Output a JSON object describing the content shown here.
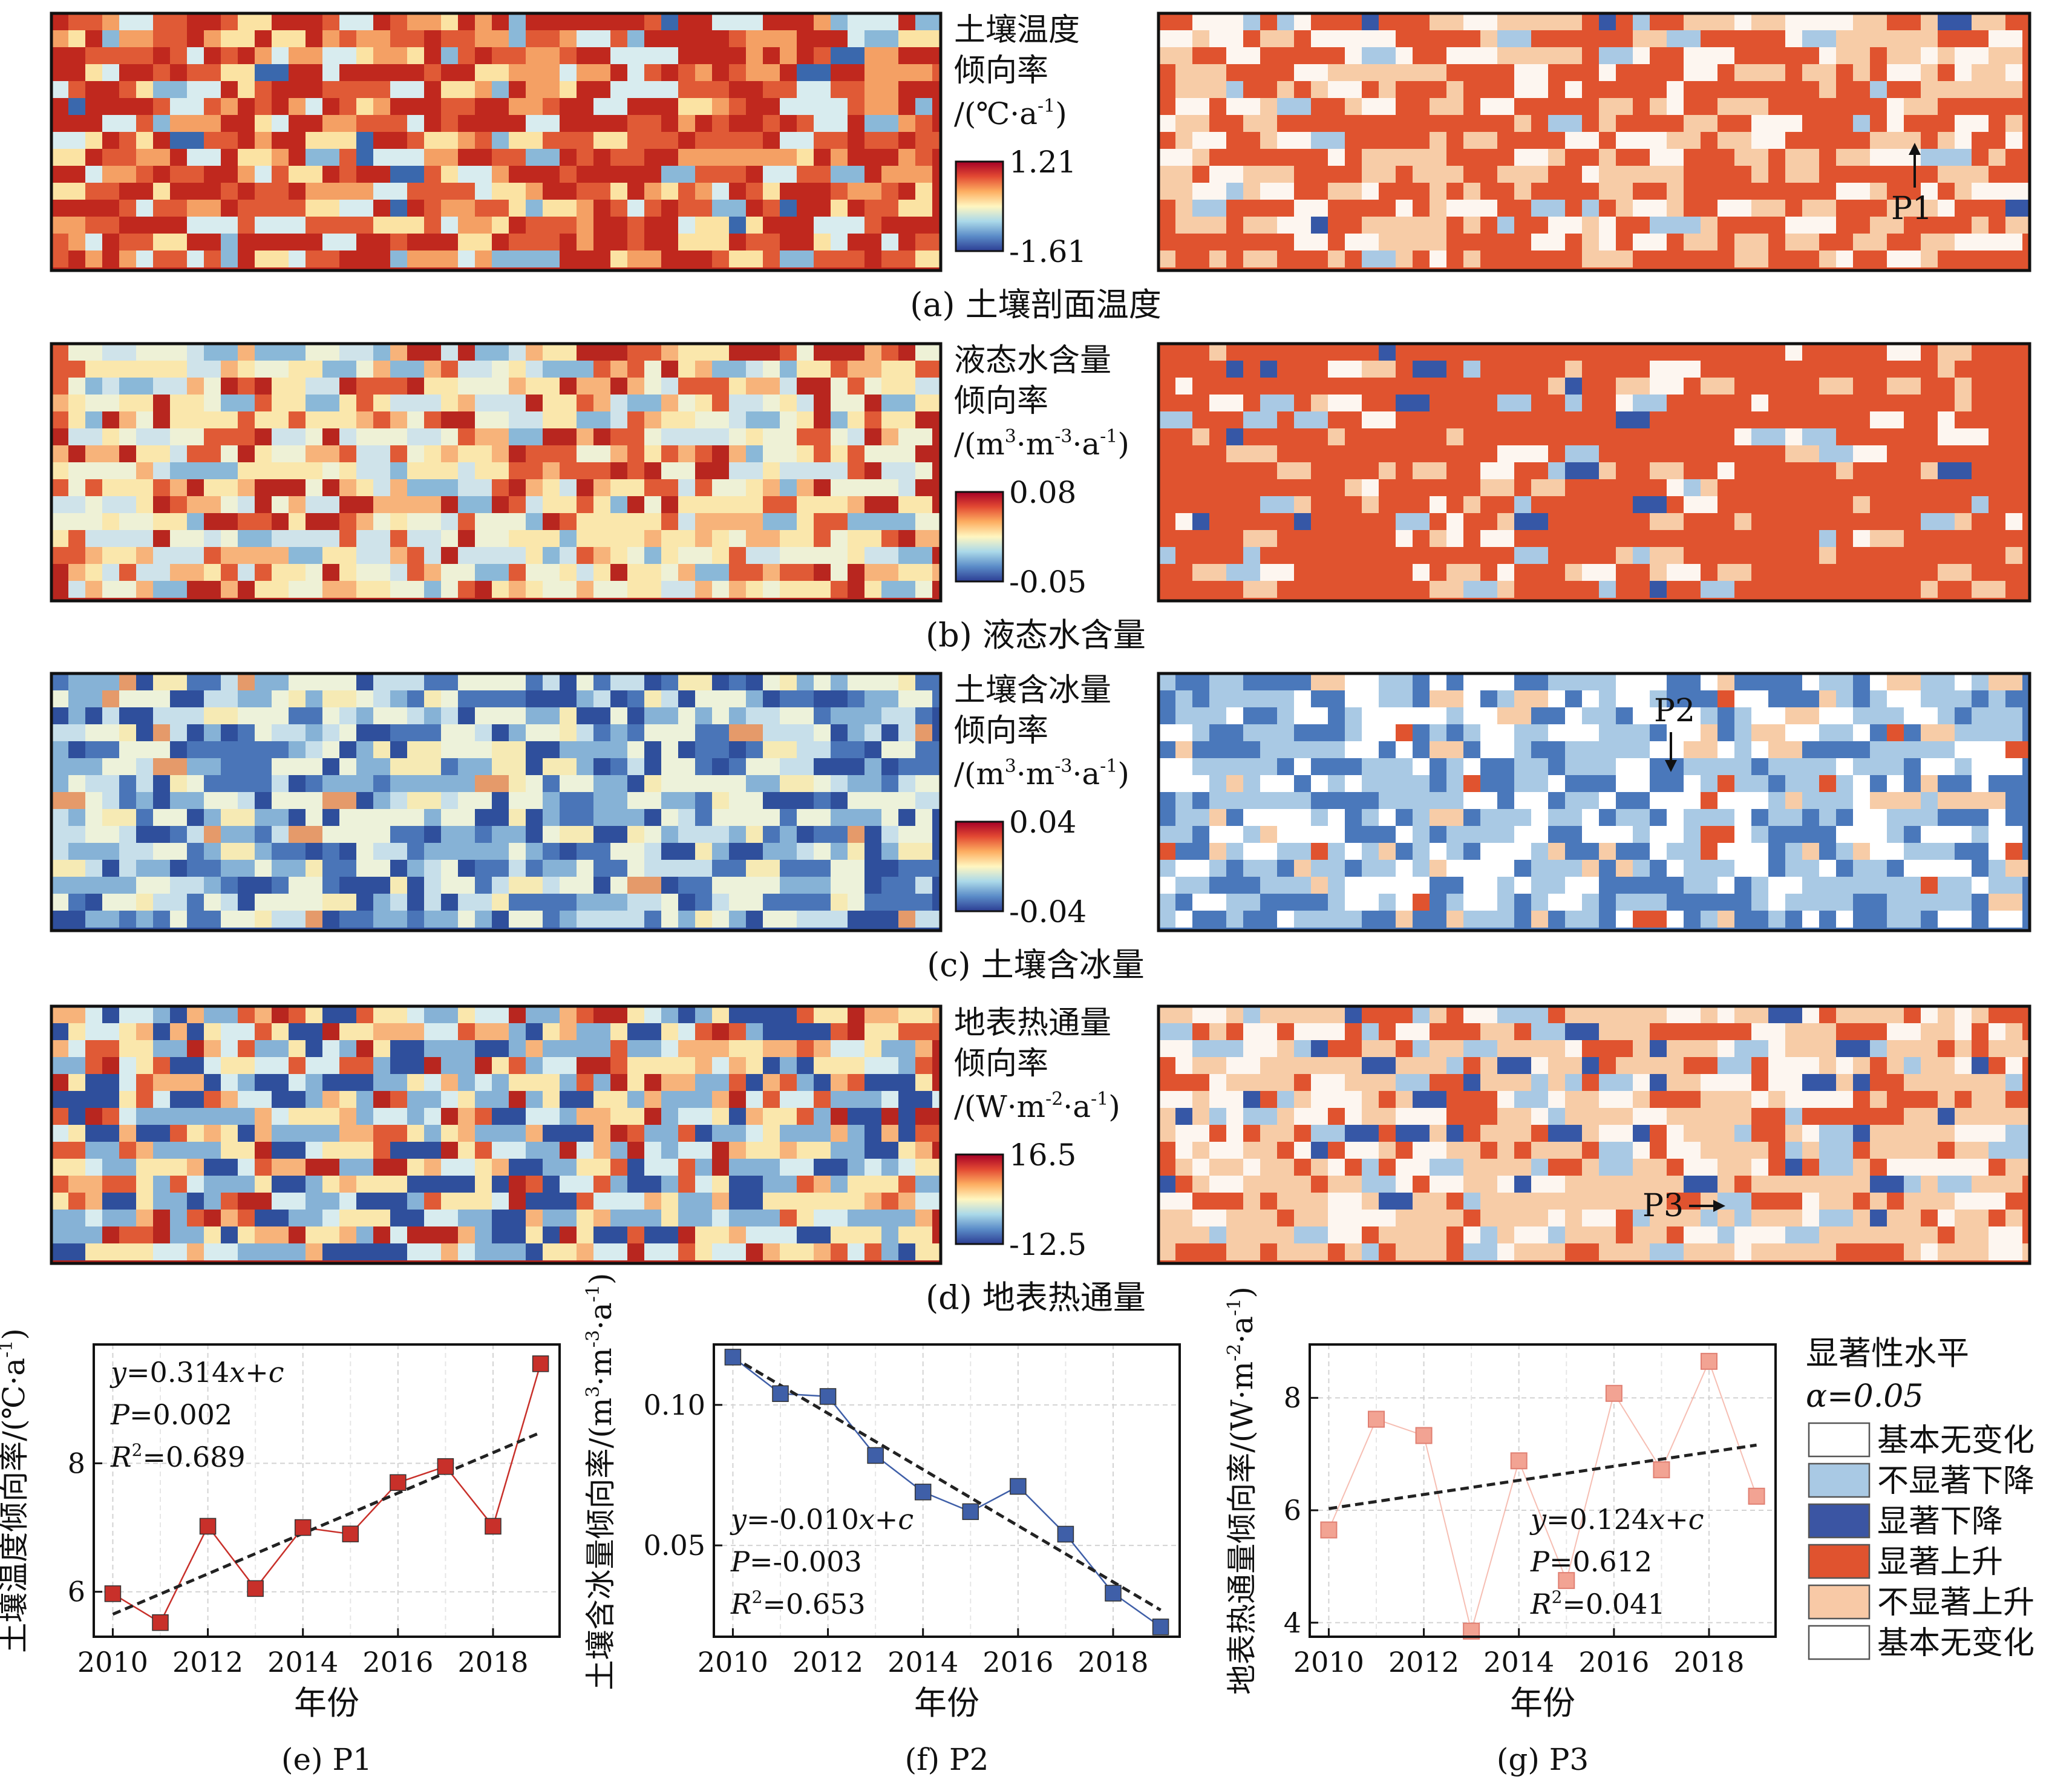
{
  "map_rows": [
    {
      "caption": "(a) 土壤剖面温度",
      "legend_title": [
        "土壤温度",
        "倾向率",
        "/(℃·a-1)"
      ],
      "cb_max": "1.21",
      "cb_min": "-1.61",
      "right_label": "P1",
      "left_colors": [
        "#c0281e",
        "#e05a36",
        "#f4a064",
        "#fbe3a3",
        "#d8ecef",
        "#8ab8d8",
        "#3a68ad"
      ],
      "left_weights": [
        40,
        20,
        10,
        8,
        8,
        4,
        2
      ],
      "right_colors": [
        "#e0532f",
        "#f7cca7",
        "#fdf6f0",
        "#a9c9e4",
        "#3657a6"
      ],
      "right_weights": [
        62,
        22,
        12,
        3,
        1
      ]
    },
    {
      "caption": "(b) 液态水含量",
      "legend_title": [
        "液态水含量",
        "倾向率",
        "/(m3·m-3·a-1)"
      ],
      "cb_max": "0.08",
      "cb_min": "-0.05",
      "right_label": "",
      "left_colors": [
        "#b8261f",
        "#e05a36",
        "#f7b37a",
        "#fae7ac",
        "#eef1d6",
        "#cfe3ea",
        "#8ab8d8"
      ],
      "left_weights": [
        18,
        14,
        14,
        22,
        14,
        12,
        6
      ],
      "right_colors": [
        "#e0532f",
        "#f7cca7",
        "#fdf6f0",
        "#a9c9e4",
        "#3657a6"
      ],
      "right_weights": [
        80,
        8,
        7,
        3,
        2
      ]
    },
    {
      "caption": "(c) 土壤含冰量",
      "legend_title": [
        "土壤含冰量",
        "倾向率",
        "/(m3·m-3·a-1)"
      ],
      "cb_max": "0.04",
      "cb_min": "-0.04",
      "right_label": "P2",
      "left_colors": [
        "#2f4f9c",
        "#4a75b8",
        "#86b2d6",
        "#c7dfea",
        "#edf2da",
        "#f6eab4",
        "#e59a6a"
      ],
      "left_weights": [
        22,
        22,
        18,
        12,
        18,
        6,
        2
      ],
      "right_colors": [
        "#4a78bb",
        "#a9c9e4",
        "#ffffff",
        "#f7cca7",
        "#e0532f"
      ],
      "right_weights": [
        36,
        36,
        20,
        6,
        2
      ]
    },
    {
      "caption": "(d) 地表热通量",
      "legend_title": [
        "地表热通量",
        "倾向率",
        "/(W·m-2·a-1)"
      ],
      "cb_max": "16.5",
      "cb_min": "-12.5",
      "right_label": "P3",
      "left_colors": [
        "#b8261f",
        "#e05a36",
        "#f7b37a",
        "#fae7ac",
        "#d8ecef",
        "#86b2d6",
        "#2f4f9c"
      ],
      "left_weights": [
        12,
        14,
        14,
        16,
        14,
        16,
        14
      ],
      "right_colors": [
        "#e0532f",
        "#f7cca7",
        "#fdf6f0",
        "#a9c9e4",
        "#3657a6"
      ],
      "right_weights": [
        30,
        40,
        18,
        9,
        3
      ]
    }
  ],
  "legend": {
    "title": "显著性水平",
    "alpha": "α=0.05",
    "items": [
      {
        "label": "基本无变化",
        "color": "#ffffff"
      },
      {
        "label": "不显著下降",
        "color": "#a9c9e4"
      },
      {
        "label": "显著下降",
        "color": "#3b55a3"
      },
      {
        "label": "显著上升",
        "color": "#e0532f"
      },
      {
        "label": "不显著上升",
        "color": "#f8c9a6"
      },
      {
        "label": "基本无变化",
        "color": "#ffffff"
      }
    ]
  },
  "chart_data": [
    {
      "type": "line",
      "title": "(e) P1",
      "xlabel": "年份",
      "ylabel": "土壤温度倾向率/(℃·a-1)",
      "x": [
        2010,
        2011,
        2012,
        2013,
        2014,
        2015,
        2016,
        2017,
        2018,
        2019
      ],
      "values": [
        5.97,
        5.52,
        7.02,
        6.05,
        7.0,
        6.9,
        7.7,
        7.95,
        7.02,
        9.55
      ],
      "xlim": [
        2009.6,
        2019.4
      ],
      "ylim": [
        5.3,
        9.85
      ],
      "xticks": [
        2010,
        2012,
        2014,
        2016,
        2018
      ],
      "yticks": [
        6,
        8
      ],
      "fit_x": [
        2010,
        2019
      ],
      "fit_y": [
        5.65,
        8.48
      ],
      "color": "#c8302a",
      "text_pos": "top-left",
      "eq": [
        "y=0.314x+c",
        "P=0.002",
        "R2=0.689"
      ]
    },
    {
      "type": "line",
      "title": "(f) P2",
      "xlabel": "年份",
      "ylabel": "土壤含冰量倾向率/(m3·m-3·a-1)",
      "x": [
        2010,
        2011,
        2012,
        2013,
        2014,
        2015,
        2016,
        2017,
        2018,
        2019
      ],
      "values": [
        0.117,
        0.104,
        0.103,
        0.082,
        0.069,
        0.062,
        0.071,
        0.054,
        0.033,
        0.021
      ],
      "xlim": [
        2009.6,
        2019.4
      ],
      "ylim": [
        0.0175,
        0.1215
      ],
      "xticks": [
        2010,
        2012,
        2014,
        2016,
        2018
      ],
      "yticks": [
        0.05,
        0.1
      ],
      "ytick_labels": [
        "0.05",
        "0.10"
      ],
      "fit_x": [
        2010,
        2019
      ],
      "fit_y": [
        0.117,
        0.027
      ],
      "color": "#3f5fa8",
      "text_pos": "bottom-left",
      "eq": [
        "y=-0.010x+c",
        "P=-0.003",
        "R2=0.653"
      ]
    },
    {
      "type": "line",
      "title": "(g) P3",
      "xlabel": "年份",
      "ylabel": "地表热通量倾向率/(W·m-2·a-1)",
      "x": [
        2010,
        2011,
        2012,
        2013,
        2014,
        2015,
        2016,
        2017,
        2018,
        2019
      ],
      "values": [
        5.65,
        7.62,
        7.33,
        3.85,
        6.88,
        4.75,
        8.08,
        6.72,
        8.65,
        6.25
      ],
      "xlim": [
        2009.6,
        2019.4
      ],
      "ylim": [
        3.75,
        8.95
      ],
      "xticks": [
        2010,
        2012,
        2014,
        2016,
        2018
      ],
      "yticks": [
        4,
        6,
        8
      ],
      "fit_x": [
        2010,
        2019
      ],
      "fit_y": [
        6.03,
        7.16
      ],
      "color": "#f2a393",
      "text_pos": "bottom-right",
      "eq": [
        "y=0.124x+c",
        "P=0.612",
        "R2=0.041"
      ]
    }
  ]
}
